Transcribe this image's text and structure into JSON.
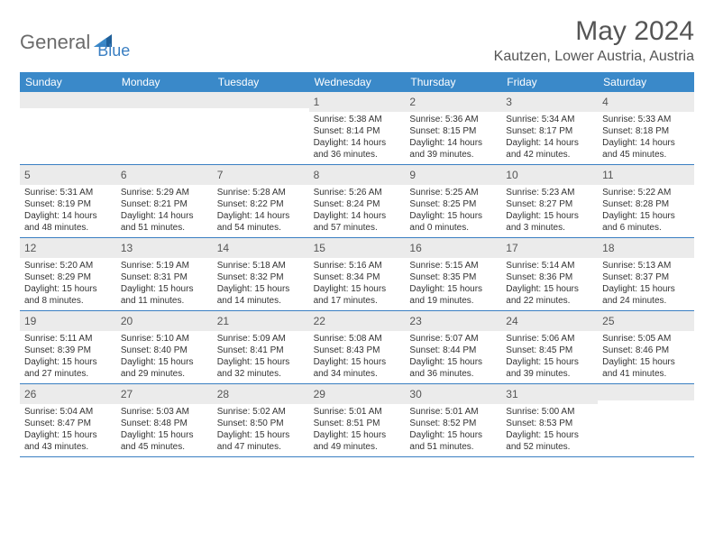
{
  "logo": {
    "text1": "General",
    "text2": "Blue"
  },
  "title": "May 2024",
  "location": "Kautzen, Lower Austria, Austria",
  "colors": {
    "header_bg": "#3a89c9",
    "accent": "#3a7fc2",
    "daynum_bg": "#ebebeb",
    "text_gray": "#555555",
    "text_dark": "#333333"
  },
  "typography": {
    "title_fontsize": 30,
    "location_fontsize": 16,
    "dayheader_fontsize": 12,
    "daynum_fontsize": 12,
    "dayinfo_fontsize": 10
  },
  "day_headers": [
    "Sunday",
    "Monday",
    "Tuesday",
    "Wednesday",
    "Thursday",
    "Friday",
    "Saturday"
  ],
  "weeks": [
    [
      {
        "num": "",
        "sunrise": "",
        "sunset": "",
        "daylight": ""
      },
      {
        "num": "",
        "sunrise": "",
        "sunset": "",
        "daylight": ""
      },
      {
        "num": "",
        "sunrise": "",
        "sunset": "",
        "daylight": ""
      },
      {
        "num": "1",
        "sunrise": "Sunrise: 5:38 AM",
        "sunset": "Sunset: 8:14 PM",
        "daylight": "Daylight: 14 hours and 36 minutes."
      },
      {
        "num": "2",
        "sunrise": "Sunrise: 5:36 AM",
        "sunset": "Sunset: 8:15 PM",
        "daylight": "Daylight: 14 hours and 39 minutes."
      },
      {
        "num": "3",
        "sunrise": "Sunrise: 5:34 AM",
        "sunset": "Sunset: 8:17 PM",
        "daylight": "Daylight: 14 hours and 42 minutes."
      },
      {
        "num": "4",
        "sunrise": "Sunrise: 5:33 AM",
        "sunset": "Sunset: 8:18 PM",
        "daylight": "Daylight: 14 hours and 45 minutes."
      }
    ],
    [
      {
        "num": "5",
        "sunrise": "Sunrise: 5:31 AM",
        "sunset": "Sunset: 8:19 PM",
        "daylight": "Daylight: 14 hours and 48 minutes."
      },
      {
        "num": "6",
        "sunrise": "Sunrise: 5:29 AM",
        "sunset": "Sunset: 8:21 PM",
        "daylight": "Daylight: 14 hours and 51 minutes."
      },
      {
        "num": "7",
        "sunrise": "Sunrise: 5:28 AM",
        "sunset": "Sunset: 8:22 PM",
        "daylight": "Daylight: 14 hours and 54 minutes."
      },
      {
        "num": "8",
        "sunrise": "Sunrise: 5:26 AM",
        "sunset": "Sunset: 8:24 PM",
        "daylight": "Daylight: 14 hours and 57 minutes."
      },
      {
        "num": "9",
        "sunrise": "Sunrise: 5:25 AM",
        "sunset": "Sunset: 8:25 PM",
        "daylight": "Daylight: 15 hours and 0 minutes."
      },
      {
        "num": "10",
        "sunrise": "Sunrise: 5:23 AM",
        "sunset": "Sunset: 8:27 PM",
        "daylight": "Daylight: 15 hours and 3 minutes."
      },
      {
        "num": "11",
        "sunrise": "Sunrise: 5:22 AM",
        "sunset": "Sunset: 8:28 PM",
        "daylight": "Daylight: 15 hours and 6 minutes."
      }
    ],
    [
      {
        "num": "12",
        "sunrise": "Sunrise: 5:20 AM",
        "sunset": "Sunset: 8:29 PM",
        "daylight": "Daylight: 15 hours and 8 minutes."
      },
      {
        "num": "13",
        "sunrise": "Sunrise: 5:19 AM",
        "sunset": "Sunset: 8:31 PM",
        "daylight": "Daylight: 15 hours and 11 minutes."
      },
      {
        "num": "14",
        "sunrise": "Sunrise: 5:18 AM",
        "sunset": "Sunset: 8:32 PM",
        "daylight": "Daylight: 15 hours and 14 minutes."
      },
      {
        "num": "15",
        "sunrise": "Sunrise: 5:16 AM",
        "sunset": "Sunset: 8:34 PM",
        "daylight": "Daylight: 15 hours and 17 minutes."
      },
      {
        "num": "16",
        "sunrise": "Sunrise: 5:15 AM",
        "sunset": "Sunset: 8:35 PM",
        "daylight": "Daylight: 15 hours and 19 minutes."
      },
      {
        "num": "17",
        "sunrise": "Sunrise: 5:14 AM",
        "sunset": "Sunset: 8:36 PM",
        "daylight": "Daylight: 15 hours and 22 minutes."
      },
      {
        "num": "18",
        "sunrise": "Sunrise: 5:13 AM",
        "sunset": "Sunset: 8:37 PM",
        "daylight": "Daylight: 15 hours and 24 minutes."
      }
    ],
    [
      {
        "num": "19",
        "sunrise": "Sunrise: 5:11 AM",
        "sunset": "Sunset: 8:39 PM",
        "daylight": "Daylight: 15 hours and 27 minutes."
      },
      {
        "num": "20",
        "sunrise": "Sunrise: 5:10 AM",
        "sunset": "Sunset: 8:40 PM",
        "daylight": "Daylight: 15 hours and 29 minutes."
      },
      {
        "num": "21",
        "sunrise": "Sunrise: 5:09 AM",
        "sunset": "Sunset: 8:41 PM",
        "daylight": "Daylight: 15 hours and 32 minutes."
      },
      {
        "num": "22",
        "sunrise": "Sunrise: 5:08 AM",
        "sunset": "Sunset: 8:43 PM",
        "daylight": "Daylight: 15 hours and 34 minutes."
      },
      {
        "num": "23",
        "sunrise": "Sunrise: 5:07 AM",
        "sunset": "Sunset: 8:44 PM",
        "daylight": "Daylight: 15 hours and 36 minutes."
      },
      {
        "num": "24",
        "sunrise": "Sunrise: 5:06 AM",
        "sunset": "Sunset: 8:45 PM",
        "daylight": "Daylight: 15 hours and 39 minutes."
      },
      {
        "num": "25",
        "sunrise": "Sunrise: 5:05 AM",
        "sunset": "Sunset: 8:46 PM",
        "daylight": "Daylight: 15 hours and 41 minutes."
      }
    ],
    [
      {
        "num": "26",
        "sunrise": "Sunrise: 5:04 AM",
        "sunset": "Sunset: 8:47 PM",
        "daylight": "Daylight: 15 hours and 43 minutes."
      },
      {
        "num": "27",
        "sunrise": "Sunrise: 5:03 AM",
        "sunset": "Sunset: 8:48 PM",
        "daylight": "Daylight: 15 hours and 45 minutes."
      },
      {
        "num": "28",
        "sunrise": "Sunrise: 5:02 AM",
        "sunset": "Sunset: 8:50 PM",
        "daylight": "Daylight: 15 hours and 47 minutes."
      },
      {
        "num": "29",
        "sunrise": "Sunrise: 5:01 AM",
        "sunset": "Sunset: 8:51 PM",
        "daylight": "Daylight: 15 hours and 49 minutes."
      },
      {
        "num": "30",
        "sunrise": "Sunrise: 5:01 AM",
        "sunset": "Sunset: 8:52 PM",
        "daylight": "Daylight: 15 hours and 51 minutes."
      },
      {
        "num": "31",
        "sunrise": "Sunrise: 5:00 AM",
        "sunset": "Sunset: 8:53 PM",
        "daylight": "Daylight: 15 hours and 52 minutes."
      },
      {
        "num": "",
        "sunrise": "",
        "sunset": "",
        "daylight": ""
      }
    ]
  ]
}
